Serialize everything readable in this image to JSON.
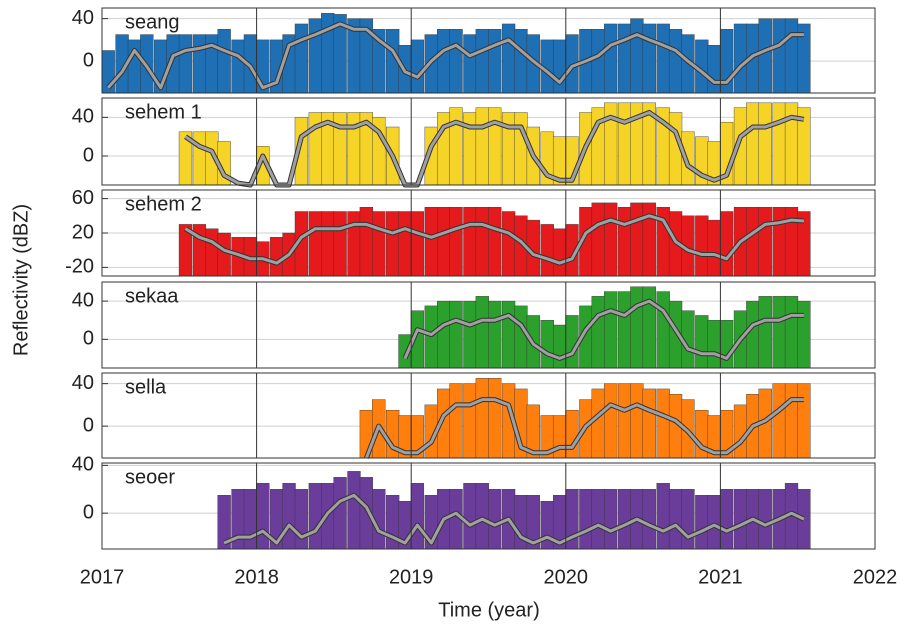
{
  "chart_data": [
    {
      "type": "bar",
      "title": "seang",
      "ylabel": "Reflectivity (dBZ)",
      "xlim": [
        2017,
        2022
      ],
      "xticks": [
        2017,
        2018,
        2019,
        2020,
        2021,
        2022
      ],
      "ylim": [
        -30,
        50
      ],
      "yticks": [
        0,
        40
      ],
      "grid": true,
      "x": [
        2017.04,
        2017.13,
        2017.21,
        2017.29,
        2017.38,
        2017.46,
        2017.54,
        2017.63,
        2017.71,
        2017.79,
        2017.88,
        2017.96,
        2018.04,
        2018.13,
        2018.21,
        2018.29,
        2018.38,
        2018.46,
        2018.54,
        2018.63,
        2018.71,
        2018.79,
        2018.88,
        2018.96,
        2019.04,
        2019.13,
        2019.21,
        2019.29,
        2019.38,
        2019.46,
        2019.54,
        2019.63,
        2019.71,
        2019.79,
        2019.88,
        2019.96,
        2020.04,
        2020.13,
        2020.21,
        2020.29,
        2020.38,
        2020.46,
        2020.54,
        2020.63,
        2020.71,
        2020.79,
        2020.88,
        2020.96,
        2021.04,
        2021.13,
        2021.21,
        2021.29,
        2021.38,
        2021.46,
        2021.54
      ],
      "series": [
        {
          "type": "bar",
          "color": "#1f6fb4",
          "values": [
            10,
            25,
            20,
            25,
            20,
            25,
            25,
            25,
            25,
            30,
            20,
            25,
            20,
            20,
            25,
            35,
            40,
            45,
            44,
            40,
            40,
            30,
            30,
            15,
            20,
            25,
            30,
            30,
            25,
            30,
            30,
            35,
            30,
            25,
            20,
            20,
            25,
            30,
            30,
            35,
            35,
            40,
            35,
            35,
            30,
            25,
            20,
            15,
            30,
            35,
            35,
            40,
            40,
            40,
            35
          ]
        },
        {
          "type": "line",
          "color": "#a0a0a0",
          "values": [
            -25,
            -10,
            10,
            -5,
            -25,
            5,
            10,
            12,
            15,
            10,
            5,
            -5,
            -25,
            -20,
            15,
            20,
            25,
            30,
            35,
            30,
            30,
            20,
            10,
            -10,
            -15,
            0,
            10,
            15,
            5,
            10,
            15,
            20,
            10,
            0,
            -10,
            -20,
            -5,
            0,
            5,
            15,
            20,
            25,
            20,
            15,
            10,
            0,
            -10,
            -20,
            -20,
            -5,
            5,
            10,
            15,
            25,
            25
          ]
        }
      ]
    },
    {
      "type": "bar",
      "title": "sehem 1",
      "xlim": [
        2017,
        2022
      ],
      "xticks": [
        2017,
        2018,
        2019,
        2020,
        2021,
        2022
      ],
      "ylim": [
        -30,
        60
      ],
      "yticks": [
        0,
        40
      ],
      "grid": true,
      "x": [
        2017.54,
        2017.63,
        2017.71,
        2017.79,
        2017.88,
        2017.96,
        2018.04,
        2018.13,
        2018.21,
        2018.29,
        2018.38,
        2018.46,
        2018.54,
        2018.63,
        2018.71,
        2018.79,
        2018.88,
        2018.96,
        2019.04,
        2019.13,
        2019.21,
        2019.29,
        2019.38,
        2019.46,
        2019.54,
        2019.63,
        2019.71,
        2019.79,
        2019.88,
        2019.96,
        2020.04,
        2020.13,
        2020.21,
        2020.29,
        2020.38,
        2020.46,
        2020.54,
        2020.63,
        2020.71,
        2020.79,
        2020.88,
        2020.96,
        2021.04,
        2021.13,
        2021.21,
        2021.29,
        2021.38,
        2021.46,
        2021.54
      ],
      "series": [
        {
          "type": "bar",
          "color": "#f5d327",
          "values": [
            25,
            25,
            25,
            15,
            null,
            null,
            10,
            null,
            null,
            40,
            45,
            45,
            45,
            45,
            45,
            40,
            30,
            null,
            null,
            30,
            45,
            50,
            45,
            50,
            50,
            45,
            45,
            30,
            25,
            20,
            20,
            45,
            50,
            55,
            55,
            55,
            55,
            50,
            45,
            25,
            20,
            15,
            35,
            50,
            55,
            55,
            55,
            55,
            50
          ]
        },
        {
          "type": "line",
          "color": "#a0a0a0",
          "values": [
            20,
            10,
            5,
            -20,
            -28,
            -30,
            0,
            -30,
            -30,
            20,
            30,
            35,
            30,
            30,
            35,
            25,
            0,
            -30,
            -30,
            10,
            30,
            35,
            30,
            30,
            35,
            30,
            30,
            0,
            -20,
            -25,
            -25,
            10,
            35,
            40,
            35,
            40,
            45,
            35,
            25,
            -10,
            -20,
            -25,
            -20,
            20,
            30,
            30,
            35,
            40,
            38
          ]
        }
      ]
    },
    {
      "type": "bar",
      "title": "sehem 2",
      "xlim": [
        2017,
        2022
      ],
      "xticks": [
        2017,
        2018,
        2019,
        2020,
        2021,
        2022
      ],
      "ylim": [
        -30,
        70
      ],
      "yticks": [
        -20,
        20,
        60
      ],
      "grid": true,
      "x": [
        2017.54,
        2017.63,
        2017.71,
        2017.79,
        2017.88,
        2017.96,
        2018.04,
        2018.13,
        2018.21,
        2018.29,
        2018.38,
        2018.46,
        2018.54,
        2018.63,
        2018.71,
        2018.79,
        2018.88,
        2018.96,
        2019.04,
        2019.13,
        2019.21,
        2019.29,
        2019.38,
        2019.46,
        2019.54,
        2019.63,
        2019.71,
        2019.79,
        2019.88,
        2019.96,
        2020.04,
        2020.13,
        2020.21,
        2020.29,
        2020.38,
        2020.46,
        2020.54,
        2020.63,
        2020.71,
        2020.79,
        2020.88,
        2020.96,
        2021.04,
        2021.13,
        2021.21,
        2021.29,
        2021.38,
        2021.46,
        2021.54
      ],
      "series": [
        {
          "type": "bar",
          "color": "#e41a1c",
          "values": [
            30,
            30,
            25,
            20,
            15,
            15,
            10,
            15,
            20,
            45,
            45,
            45,
            45,
            45,
            50,
            45,
            45,
            45,
            45,
            50,
            50,
            50,
            50,
            50,
            50,
            45,
            40,
            35,
            30,
            25,
            30,
            50,
            55,
            55,
            50,
            55,
            55,
            50,
            45,
            40,
            40,
            35,
            45,
            50,
            50,
            50,
            50,
            50,
            45
          ]
        },
        {
          "type": "line",
          "color": "#a0a0a0",
          "values": [
            25,
            15,
            10,
            0,
            -5,
            -10,
            -10,
            -15,
            -5,
            15,
            25,
            25,
            25,
            30,
            30,
            25,
            20,
            25,
            20,
            15,
            20,
            25,
            30,
            30,
            25,
            20,
            10,
            -5,
            -10,
            -15,
            -10,
            20,
            30,
            35,
            30,
            35,
            40,
            35,
            10,
            0,
            -5,
            -5,
            -10,
            10,
            20,
            30,
            32,
            35,
            34
          ]
        }
      ]
    },
    {
      "type": "bar",
      "title": "sekaa",
      "xlim": [
        2017,
        2022
      ],
      "xticks": [
        2017,
        2018,
        2019,
        2020,
        2021,
        2022
      ],
      "ylim": [
        -30,
        60
      ],
      "yticks": [
        0,
        40
      ],
      "grid": true,
      "x": [
        2018.96,
        2019.04,
        2019.13,
        2019.21,
        2019.29,
        2019.38,
        2019.46,
        2019.54,
        2019.63,
        2019.71,
        2019.79,
        2019.88,
        2019.96,
        2020.04,
        2020.13,
        2020.21,
        2020.29,
        2020.38,
        2020.46,
        2020.54,
        2020.63,
        2020.71,
        2020.79,
        2020.88,
        2020.96,
        2021.04,
        2021.13,
        2021.21,
        2021.29,
        2021.38,
        2021.46,
        2021.54
      ],
      "series": [
        {
          "type": "bar",
          "color": "#2ca02c",
          "values": [
            5,
            30,
            35,
            40,
            40,
            40,
            45,
            40,
            40,
            35,
            25,
            20,
            15,
            25,
            35,
            45,
            50,
            50,
            55,
            55,
            50,
            40,
            30,
            25,
            20,
            20,
            30,
            40,
            45,
            45,
            45,
            40
          ]
        },
        {
          "type": "line",
          "color": "#a0a0a0",
          "values": [
            -20,
            10,
            5,
            15,
            20,
            15,
            20,
            20,
            25,
            15,
            -5,
            -15,
            -20,
            -15,
            10,
            25,
            30,
            25,
            35,
            40,
            30,
            10,
            -10,
            -15,
            -15,
            -20,
            0,
            15,
            20,
            20,
            25,
            25
          ]
        }
      ]
    },
    {
      "type": "bar",
      "title": "sella",
      "xlim": [
        2017,
        2022
      ],
      "xticks": [
        2017,
        2018,
        2019,
        2020,
        2021,
        2022
      ],
      "ylim": [
        -30,
        50
      ],
      "yticks": [
        0,
        40
      ],
      "grid": true,
      "x": [
        2018.71,
        2018.79,
        2018.88,
        2018.96,
        2019.04,
        2019.13,
        2019.21,
        2019.29,
        2019.38,
        2019.46,
        2019.54,
        2019.63,
        2019.71,
        2019.79,
        2019.88,
        2019.96,
        2020.04,
        2020.13,
        2020.21,
        2020.29,
        2020.38,
        2020.46,
        2020.54,
        2020.63,
        2020.71,
        2020.79,
        2020.88,
        2020.96,
        2021.04,
        2021.13,
        2021.21,
        2021.29,
        2021.38,
        2021.46,
        2021.54
      ],
      "series": [
        {
          "type": "bar",
          "color": "#ff7f0e",
          "values": [
            15,
            25,
            15,
            10,
            10,
            20,
            35,
            40,
            40,
            45,
            45,
            40,
            35,
            20,
            10,
            10,
            15,
            25,
            35,
            40,
            40,
            40,
            35,
            35,
            30,
            25,
            15,
            10,
            15,
            20,
            30,
            35,
            40,
            40,
            40
          ]
        },
        {
          "type": "line",
          "color": "#a0a0a0",
          "values": [
            -30,
            0,
            -20,
            -25,
            -25,
            -15,
            10,
            20,
            20,
            25,
            25,
            20,
            -20,
            -25,
            -25,
            -20,
            -20,
            0,
            10,
            20,
            15,
            20,
            15,
            10,
            5,
            -5,
            -20,
            -25,
            -25,
            -15,
            0,
            5,
            15,
            25,
            25
          ]
        }
      ]
    },
    {
      "type": "bar",
      "title": "seoer",
      "xlabel": "Time (year)",
      "xlim": [
        2017,
        2022
      ],
      "xticks": [
        2017,
        2018,
        2019,
        2020,
        2021,
        2022
      ],
      "ylim": [
        -30,
        42
      ],
      "yticks": [
        0,
        40
      ],
      "grid": true,
      "x": [
        2017.79,
        2017.88,
        2017.96,
        2018.04,
        2018.13,
        2018.21,
        2018.29,
        2018.38,
        2018.46,
        2018.54,
        2018.63,
        2018.71,
        2018.79,
        2018.88,
        2018.96,
        2019.04,
        2019.13,
        2019.21,
        2019.29,
        2019.38,
        2019.46,
        2019.54,
        2019.63,
        2019.71,
        2019.79,
        2019.88,
        2019.96,
        2020.04,
        2020.13,
        2020.21,
        2020.29,
        2020.38,
        2020.46,
        2020.54,
        2020.63,
        2020.71,
        2020.79,
        2020.88,
        2020.96,
        2021.04,
        2021.13,
        2021.21,
        2021.29,
        2021.38,
        2021.46,
        2021.54
      ],
      "series": [
        {
          "type": "bar",
          "color": "#6a3d9a",
          "values": [
            15,
            20,
            20,
            25,
            20,
            25,
            20,
            25,
            25,
            30,
            35,
            30,
            20,
            15,
            10,
            25,
            15,
            20,
            20,
            25,
            25,
            20,
            20,
            15,
            15,
            10,
            15,
            20,
            20,
            20,
            20,
            20,
            20,
            20,
            25,
            20,
            20,
            15,
            15,
            20,
            20,
            20,
            20,
            20,
            25,
            20
          ]
        },
        {
          "type": "line",
          "color": "#a0a0a0",
          "values": [
            -25,
            -20,
            -20,
            -15,
            -25,
            -10,
            -20,
            -15,
            0,
            10,
            15,
            5,
            -15,
            -20,
            -25,
            -10,
            -25,
            -5,
            0,
            -10,
            -5,
            -10,
            -5,
            -20,
            -25,
            -20,
            -25,
            -20,
            -15,
            -10,
            -15,
            -10,
            -5,
            -10,
            -15,
            -10,
            -20,
            -15,
            -10,
            -15,
            -10,
            -5,
            -10,
            -5,
            0,
            -5
          ]
        }
      ]
    }
  ]
}
